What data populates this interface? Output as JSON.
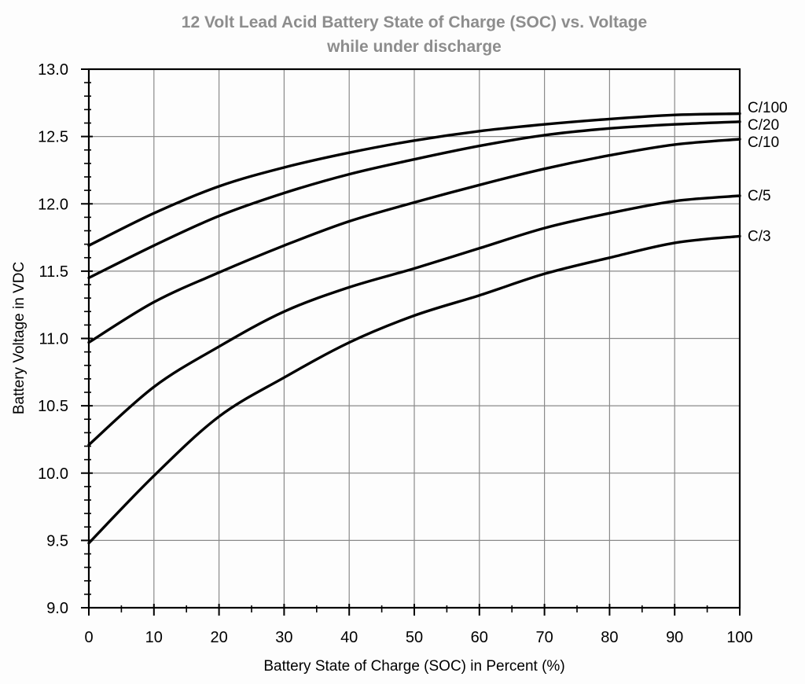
{
  "page": {
    "background": "#fdfdfd"
  },
  "chart_data": {
    "type": "line",
    "title": "12 Volt Lead Acid Battery State of Charge (SOC) vs. Voltage",
    "subtitle": "while under discharge",
    "title_color": "#8d8d8d",
    "xlabel": "Battery State of Charge (SOC) in Percent (%)",
    "ylabel": "Battery Voltage in VDC",
    "xlim": [
      0,
      100
    ],
    "ylim": [
      9.0,
      13.0
    ],
    "x_tick_labels": [
      "0",
      "10",
      "20",
      "30",
      "40",
      "50",
      "60",
      "70",
      "80",
      "90",
      "100"
    ],
    "x_minor_step": 5,
    "y_tick_labels": [
      "9.0",
      "9.5",
      "10.0",
      "10.5",
      "11.0",
      "11.5",
      "12.0",
      "12.5",
      "13.0"
    ],
    "y_minor_step": 0.1,
    "grid": true,
    "grid_color": "#8a8a8a",
    "axis_color": "#000000",
    "line_color": "#000000",
    "legend_position": "right-end-labels",
    "x": [
      0,
      10,
      20,
      30,
      40,
      50,
      60,
      70,
      80,
      90,
      100
    ],
    "series": [
      {
        "name": "C/100",
        "values": [
          11.69,
          11.93,
          12.13,
          12.27,
          12.38,
          12.47,
          12.54,
          12.59,
          12.63,
          12.66,
          12.67
        ]
      },
      {
        "name": "C/20",
        "values": [
          11.45,
          11.69,
          11.91,
          12.08,
          12.22,
          12.33,
          12.43,
          12.51,
          12.56,
          12.59,
          12.61
        ]
      },
      {
        "name": "C/10",
        "values": [
          10.97,
          11.27,
          11.49,
          11.69,
          11.87,
          12.01,
          12.14,
          12.26,
          12.36,
          12.44,
          12.48
        ]
      },
      {
        "name": "C/5",
        "values": [
          10.21,
          10.64,
          10.94,
          11.2,
          11.38,
          11.52,
          11.67,
          11.82,
          11.93,
          12.02,
          12.06
        ]
      },
      {
        "name": "C/3",
        "values": [
          9.48,
          9.98,
          10.42,
          10.71,
          10.97,
          11.17,
          11.32,
          11.48,
          11.6,
          11.71,
          11.76
        ]
      }
    ]
  }
}
